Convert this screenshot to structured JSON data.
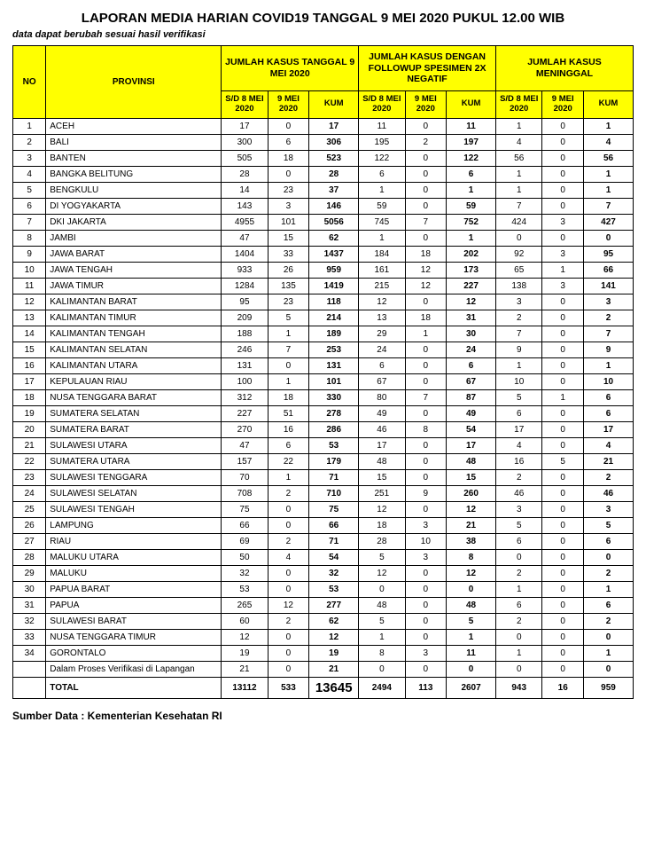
{
  "title": "LAPORAN MEDIA HARIAN COVID19 TANGGAL 9 MEI 2020 PUKUL 12.00 WIB",
  "subtitle": "data dapat berubah sesuai hasil verifikasi",
  "source": "Sumber Data : Kementerian Kesehatan RI",
  "headers": {
    "no": "NO",
    "provinsi": "PROVINSI",
    "group1": "JUMLAH KASUS TANGGAL 9 MEI 2020",
    "group2": "JUMLAH KASUS DENGAN FOLLOWUP SPESIMEN 2X NEGATIF",
    "group3": "JUMLAH KASUS MENINGGAL",
    "sd8": "S/D 8 MEI 2020",
    "d9": "9 MEI 2020",
    "kum": "KUM"
  },
  "rows": [
    {
      "no": "1",
      "prov": "ACEH",
      "a1": "17",
      "a2": "0",
      "a3": "17",
      "b1": "11",
      "b2": "0",
      "b3": "11",
      "c1": "1",
      "c2": "0",
      "c3": "1"
    },
    {
      "no": "2",
      "prov": "BALI",
      "a1": "300",
      "a2": "6",
      "a3": "306",
      "b1": "195",
      "b2": "2",
      "b3": "197",
      "c1": "4",
      "c2": "0",
      "c3": "4"
    },
    {
      "no": "3",
      "prov": "BANTEN",
      "a1": "505",
      "a2": "18",
      "a3": "523",
      "b1": "122",
      "b2": "0",
      "b3": "122",
      "c1": "56",
      "c2": "0",
      "c3": "56"
    },
    {
      "no": "4",
      "prov": "BANGKA BELITUNG",
      "a1": "28",
      "a2": "0",
      "a3": "28",
      "b1": "6",
      "b2": "0",
      "b3": "6",
      "c1": "1",
      "c2": "0",
      "c3": "1"
    },
    {
      "no": "5",
      "prov": "BENGKULU",
      "a1": "14",
      "a2": "23",
      "a3": "37",
      "b1": "1",
      "b2": "0",
      "b3": "1",
      "c1": "1",
      "c2": "0",
      "c3": "1"
    },
    {
      "no": "6",
      "prov": "DI YOGYAKARTA",
      "a1": "143",
      "a2": "3",
      "a3": "146",
      "b1": "59",
      "b2": "0",
      "b3": "59",
      "c1": "7",
      "c2": "0",
      "c3": "7"
    },
    {
      "no": "7",
      "prov": "DKI JAKARTA",
      "a1": "4955",
      "a2": "101",
      "a3": "5056",
      "b1": "745",
      "b2": "7",
      "b3": "752",
      "c1": "424",
      "c2": "3",
      "c3": "427"
    },
    {
      "no": "8",
      "prov": "JAMBI",
      "a1": "47",
      "a2": "15",
      "a3": "62",
      "b1": "1",
      "b2": "0",
      "b3": "1",
      "c1": "0",
      "c2": "0",
      "c3": "0"
    },
    {
      "no": "9",
      "prov": "JAWA BARAT",
      "a1": "1404",
      "a2": "33",
      "a3": "1437",
      "b1": "184",
      "b2": "18",
      "b3": "202",
      "c1": "92",
      "c2": "3",
      "c3": "95"
    },
    {
      "no": "10",
      "prov": "JAWA TENGAH",
      "a1": "933",
      "a2": "26",
      "a3": "959",
      "b1": "161",
      "b2": "12",
      "b3": "173",
      "c1": "65",
      "c2": "1",
      "c3": "66"
    },
    {
      "no": "11",
      "prov": "JAWA TIMUR",
      "a1": "1284",
      "a2": "135",
      "a3": "1419",
      "b1": "215",
      "b2": "12",
      "b3": "227",
      "c1": "138",
      "c2": "3",
      "c3": "141"
    },
    {
      "no": "12",
      "prov": "KALIMANTAN BARAT",
      "a1": "95",
      "a2": "23",
      "a3": "118",
      "b1": "12",
      "b2": "0",
      "b3": "12",
      "c1": "3",
      "c2": "0",
      "c3": "3"
    },
    {
      "no": "13",
      "prov": "KALIMANTAN TIMUR",
      "a1": "209",
      "a2": "5",
      "a3": "214",
      "b1": "13",
      "b2": "18",
      "b3": "31",
      "c1": "2",
      "c2": "0",
      "c3": "2"
    },
    {
      "no": "14",
      "prov": "KALIMANTAN TENGAH",
      "a1": "188",
      "a2": "1",
      "a3": "189",
      "b1": "29",
      "b2": "1",
      "b3": "30",
      "c1": "7",
      "c2": "0",
      "c3": "7"
    },
    {
      "no": "15",
      "prov": "KALIMANTAN SELATAN",
      "a1": "246",
      "a2": "7",
      "a3": "253",
      "b1": "24",
      "b2": "0",
      "b3": "24",
      "c1": "9",
      "c2": "0",
      "c3": "9"
    },
    {
      "no": "16",
      "prov": "KALIMANTAN UTARA",
      "a1": "131",
      "a2": "0",
      "a3": "131",
      "b1": "6",
      "b2": "0",
      "b3": "6",
      "c1": "1",
      "c2": "0",
      "c3": "1"
    },
    {
      "no": "17",
      "prov": "KEPULAUAN RIAU",
      "a1": "100",
      "a2": "1",
      "a3": "101",
      "b1": "67",
      "b2": "0",
      "b3": "67",
      "c1": "10",
      "c2": "0",
      "c3": "10"
    },
    {
      "no": "18",
      "prov": "NUSA TENGGARA BARAT",
      "a1": "312",
      "a2": "18",
      "a3": "330",
      "b1": "80",
      "b2": "7",
      "b3": "87",
      "c1": "5",
      "c2": "1",
      "c3": "6"
    },
    {
      "no": "19",
      "prov": "SUMATERA SELATAN",
      "a1": "227",
      "a2": "51",
      "a3": "278",
      "b1": "49",
      "b2": "0",
      "b3": "49",
      "c1": "6",
      "c2": "0",
      "c3": "6"
    },
    {
      "no": "20",
      "prov": "SUMATERA BARAT",
      "a1": "270",
      "a2": "16",
      "a3": "286",
      "b1": "46",
      "b2": "8",
      "b3": "54",
      "c1": "17",
      "c2": "0",
      "c3": "17"
    },
    {
      "no": "21",
      "prov": "SULAWESI UTARA",
      "a1": "47",
      "a2": "6",
      "a3": "53",
      "b1": "17",
      "b2": "0",
      "b3": "17",
      "c1": "4",
      "c2": "0",
      "c3": "4"
    },
    {
      "no": "22",
      "prov": "SUMATERA UTARA",
      "a1": "157",
      "a2": "22",
      "a3": "179",
      "b1": "48",
      "b2": "0",
      "b3": "48",
      "c1": "16",
      "c2": "5",
      "c3": "21"
    },
    {
      "no": "23",
      "prov": "SULAWESI TENGGARA",
      "a1": "70",
      "a2": "1",
      "a3": "71",
      "b1": "15",
      "b2": "0",
      "b3": "15",
      "c1": "2",
      "c2": "0",
      "c3": "2"
    },
    {
      "no": "24",
      "prov": "SULAWESI SELATAN",
      "a1": "708",
      "a2": "2",
      "a3": "710",
      "b1": "251",
      "b2": "9",
      "b3": "260",
      "c1": "46",
      "c2": "0",
      "c3": "46"
    },
    {
      "no": "25",
      "prov": "SULAWESI TENGAH",
      "a1": "75",
      "a2": "0",
      "a3": "75",
      "b1": "12",
      "b2": "0",
      "b3": "12",
      "c1": "3",
      "c2": "0",
      "c3": "3"
    },
    {
      "no": "26",
      "prov": "LAMPUNG",
      "a1": "66",
      "a2": "0",
      "a3": "66",
      "b1": "18",
      "b2": "3",
      "b3": "21",
      "c1": "5",
      "c2": "0",
      "c3": "5"
    },
    {
      "no": "27",
      "prov": "RIAU",
      "a1": "69",
      "a2": "2",
      "a3": "71",
      "b1": "28",
      "b2": "10",
      "b3": "38",
      "c1": "6",
      "c2": "0",
      "c3": "6"
    },
    {
      "no": "28",
      "prov": "MALUKU UTARA",
      "a1": "50",
      "a2": "4",
      "a3": "54",
      "b1": "5",
      "b2": "3",
      "b3": "8",
      "c1": "0",
      "c2": "0",
      "c3": "0"
    },
    {
      "no": "29",
      "prov": "MALUKU",
      "a1": "32",
      "a2": "0",
      "a3": "32",
      "b1": "12",
      "b2": "0",
      "b3": "12",
      "c1": "2",
      "c2": "0",
      "c3": "2"
    },
    {
      "no": "30",
      "prov": "PAPUA BARAT",
      "a1": "53",
      "a2": "0",
      "a3": "53",
      "b1": "0",
      "b2": "0",
      "b3": "0",
      "c1": "1",
      "c2": "0",
      "c3": "1"
    },
    {
      "no": "31",
      "prov": "PAPUA",
      "a1": "265",
      "a2": "12",
      "a3": "277",
      "b1": "48",
      "b2": "0",
      "b3": "48",
      "c1": "6",
      "c2": "0",
      "c3": "6"
    },
    {
      "no": "32",
      "prov": "SULAWESI BARAT",
      "a1": "60",
      "a2": "2",
      "a3": "62",
      "b1": "5",
      "b2": "0",
      "b3": "5",
      "c1": "2",
      "c2": "0",
      "c3": "2"
    },
    {
      "no": "33",
      "prov": "NUSA TENGGARA TIMUR",
      "a1": "12",
      "a2": "0",
      "a3": "12",
      "b1": "1",
      "b2": "0",
      "b3": "1",
      "c1": "0",
      "c2": "0",
      "c3": "0"
    },
    {
      "no": "34",
      "prov": "GORONTALO",
      "a1": "19",
      "a2": "0",
      "a3": "19",
      "b1": "8",
      "b2": "3",
      "b3": "11",
      "c1": "1",
      "c2": "0",
      "c3": "1"
    },
    {
      "no": "",
      "prov": "Dalam Proses Verifikasi di Lapangan",
      "a1": "21",
      "a2": "0",
      "a3": "21",
      "b1": "0",
      "b2": "0",
      "b3": "0",
      "c1": "0",
      "c2": "0",
      "c3": "0"
    }
  ],
  "total": {
    "label": "TOTAL",
    "a1": "13112",
    "a2": "533",
    "a3": "13645",
    "b1": "2494",
    "b2": "113",
    "b3": "2607",
    "c1": "943",
    "c2": "16",
    "c3": "959"
  },
  "style": {
    "header_bg": "#ffff00",
    "border_color": "#000000",
    "title_fontsize": 15,
    "cell_fontsize": 10
  }
}
